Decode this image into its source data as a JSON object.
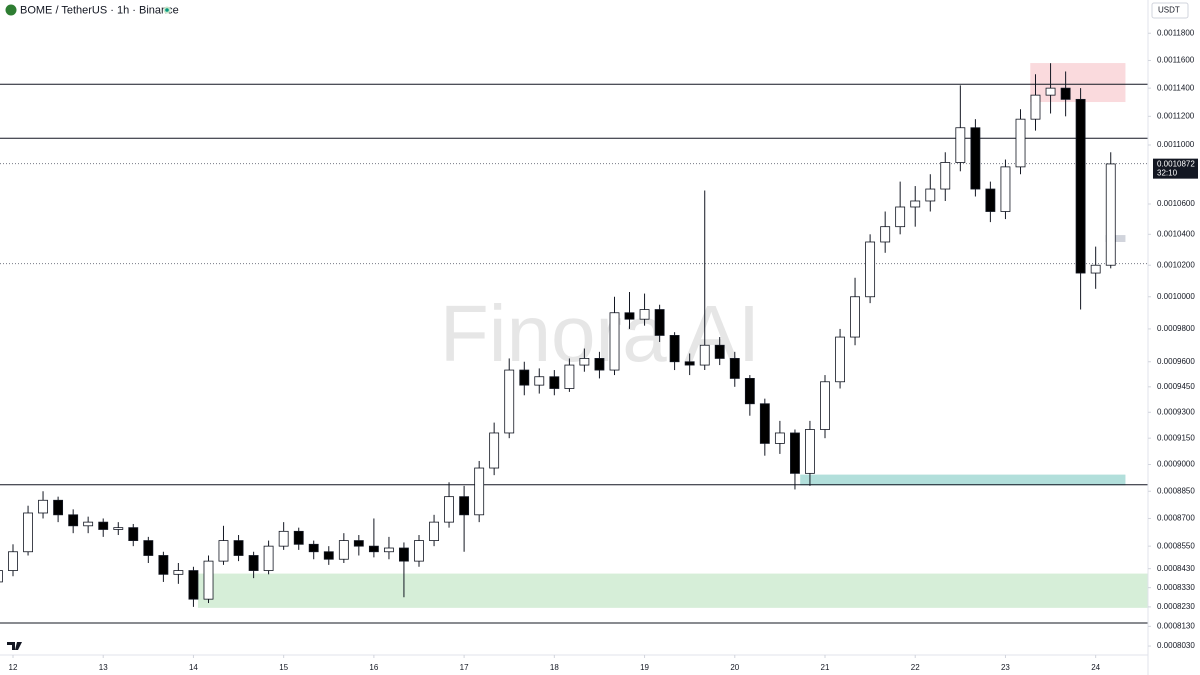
{
  "chart_data": {
    "type": "candlestick",
    "title": "BOME / TetherUS · 1h · Binance",
    "currency": "USDT",
    "watermark": "Finora AI",
    "countdown": "32:10",
    "current_price": 0.0010872,
    "log_scale": true,
    "grid": false,
    "up_color": "#ffffff",
    "down_color": "#000000",
    "xlim": [
      11.856,
      24.58
    ],
    "xticks": [
      12,
      13,
      14,
      15,
      16,
      17,
      18,
      19,
      20,
      21,
      22,
      23,
      24
    ],
    "ylim": [
      0.0007985,
      0.0012049
    ],
    "yticks": [
      {
        "value": 0.00118,
        "label": "0.0011800"
      },
      {
        "value": 0.00116,
        "label": "0.0011600"
      },
      {
        "value": 0.00114,
        "label": "0.0011400"
      },
      {
        "value": 0.00112,
        "label": "0.0011200"
      },
      {
        "value": 0.0011,
        "label": "0.0011000"
      },
      {
        "value": 0.00106,
        "label": "0.0010600"
      },
      {
        "value": 0.00104,
        "label": "0.0010400"
      },
      {
        "value": 0.00102,
        "label": "0.0010200"
      },
      {
        "value": 0.001,
        "label": "0.0010000"
      },
      {
        "value": 0.00098,
        "label": "0.0009800"
      },
      {
        "value": 0.00096,
        "label": "0.0009600"
      },
      {
        "value": 0.000945,
        "label": "0.0009450"
      },
      {
        "value": 0.00093,
        "label": "0.0009300"
      },
      {
        "value": 0.000915,
        "label": "0.0009150"
      },
      {
        "value": 0.0009,
        "label": "0.0009000"
      },
      {
        "value": 0.000885,
        "label": "0.0008850"
      },
      {
        "value": 0.00087,
        "label": "0.0008700"
      },
      {
        "value": 0.000855,
        "label": "0.0008550"
      },
      {
        "value": 0.000843,
        "label": "0.0008430"
      },
      {
        "value": 0.000833,
        "label": "0.0008330"
      },
      {
        "value": 0.000823,
        "label": "0.0008230"
      },
      {
        "value": 0.000813,
        "label": "0.0008130"
      },
      {
        "value": 0.000803,
        "label": "0.0008030"
      }
    ],
    "levels": [
      0.0011428,
      0.0011047,
      0.0008886,
      0.0008147
    ],
    "dotted_levels": [
      0.001021
    ],
    "zones": [
      {
        "from_x": 23.275,
        "to_x": 24.33,
        "low": 0.0011301,
        "high": 0.0011581,
        "color": "#fadadd"
      },
      {
        "from_x": 20.725,
        "to_x": 24.33,
        "low": 0.0008883,
        "high": 0.0008943,
        "color": "#b2dfdb"
      },
      {
        "from_x": 14.05,
        "to_x": 24.58,
        "low": 0.0008225,
        "high": 0.0008404,
        "color": "#d6eed8"
      },
      {
        "from_x": 24.11,
        "to_x": 24.33,
        "low": 0.001035,
        "high": 0.0010395,
        "color": "#d1d4dc"
      }
    ],
    "x": [
      11.833,
      12,
      12.167,
      12.333,
      12.5,
      12.667,
      12.833,
      13,
      13.167,
      13.333,
      13.5,
      13.667,
      13.833,
      14,
      14.167,
      14.333,
      14.5,
      14.667,
      14.833,
      15,
      15.167,
      15.333,
      15.5,
      15.667,
      15.833,
      16,
      16.167,
      16.333,
      16.5,
      16.667,
      16.833,
      17,
      17.167,
      17.333,
      17.5,
      17.667,
      17.833,
      18,
      18.167,
      18.333,
      18.5,
      18.667,
      18.833,
      19,
      19.167,
      19.333,
      19.5,
      19.667,
      19.833,
      20,
      20.167,
      20.333,
      20.5,
      20.667,
      20.833,
      21,
      21.167,
      21.333,
      21.5,
      21.667,
      21.833,
      22,
      22.167,
      22.333,
      22.5,
      22.667,
      22.833,
      23,
      23.167,
      23.333,
      23.5,
      23.667,
      23.833,
      24,
      24.167
    ],
    "open": [
      0.000836,
      0.000842,
      0.000852,
      0.000873,
      0.00088,
      0.000872,
      0.000866,
      0.000868,
      0.000864,
      0.000865,
      0.000858,
      0.00085,
      0.00084,
      0.000842,
      0.000827,
      0.000847,
      0.000858,
      0.00085,
      0.000842,
      0.000855,
      0.000863,
      0.000856,
      0.000852,
      0.000848,
      0.000858,
      0.000855,
      0.000852,
      0.000854,
      0.000847,
      0.000858,
      0.000868,
      0.000882,
      0.000872,
      0.000898,
      0.000918,
      0.000955,
      0.000946,
      0.000951,
      0.000944,
      0.000958,
      0.000962,
      0.000955,
      0.00099,
      0.000986,
      0.000992,
      0.000976,
      0.00096,
      0.000958,
      0.00097,
      0.000962,
      0.00095,
      0.000935,
      0.000912,
      0.000918,
      0.000895,
      0.00092,
      0.000948,
      0.000975,
      0.001,
      0.001035,
      0.001045,
      0.001058,
      0.001062,
      0.00107,
      0.001088,
      0.001112,
      0.00107,
      0.001055,
      0.001085,
      0.001118,
      0.001135,
      0.00114,
      0.001132,
      0.001015,
      0.00102
    ],
    "high": [
      0.000845,
      0.000856,
      0.000877,
      0.000885,
      0.000882,
      0.000875,
      0.000871,
      0.00087,
      0.000868,
      0.000867,
      0.00086,
      0.000852,
      0.000846,
      0.000844,
      0.00085,
      0.000866,
      0.000861,
      0.000852,
      0.000858,
      0.000868,
      0.000865,
      0.000858,
      0.000855,
      0.000862,
      0.000861,
      0.00087,
      0.00086,
      0.000857,
      0.000861,
      0.000872,
      0.00089,
      0.000888,
      0.000902,
      0.000924,
      0.000962,
      0.00096,
      0.000956,
      0.000955,
      0.000962,
      0.000968,
      0.000966,
      0.001,
      0.001003,
      0.001002,
      0.000995,
      0.000978,
      0.000965,
      0.001069,
      0.000975,
      0.000966,
      0.000952,
      0.000938,
      0.000925,
      0.00092,
      0.000925,
      0.000952,
      0.00098,
      0.001012,
      0.00104,
      0.001055,
      0.001075,
      0.001072,
      0.00108,
      0.001095,
      0.001142,
      0.001118,
      0.001075,
      0.00109,
      0.001125,
      0.00115,
      0.001158,
      0.001152,
      0.00114,
      0.001032,
      0.001095
    ],
    "low": [
      0.000833,
      0.000839,
      0.00085,
      0.00087,
      0.000868,
      0.000862,
      0.000862,
      0.00086,
      0.000861,
      0.000855,
      0.000846,
      0.000836,
      0.000835,
      0.000823,
      0.000825,
      0.000845,
      0.000847,
      0.000838,
      0.00084,
      0.000853,
      0.000853,
      0.000848,
      0.000845,
      0.000846,
      0.00085,
      0.000849,
      0.000848,
      0.000828,
      0.000844,
      0.000855,
      0.000865,
      0.000852,
      0.000868,
      0.000894,
      0.000915,
      0.00094,
      0.000941,
      0.00094,
      0.000942,
      0.000954,
      0.00095,
      0.000952,
      0.00098,
      0.000982,
      0.000972,
      0.000955,
      0.000952,
      0.000955,
      0.000958,
      0.000945,
      0.000928,
      0.000905,
      0.000906,
      0.000886,
      0.000888,
      0.000915,
      0.000944,
      0.00097,
      0.000996,
      0.001028,
      0.00104,
      0.001045,
      0.001055,
      0.001062,
      0.001082,
      0.001065,
      0.001048,
      0.00105,
      0.00108,
      0.00111,
      0.001122,
      0.00112,
      0.000992,
      0.001005,
      0.001018
    ],
    "close": [
      0.000842,
      0.000852,
      0.000873,
      0.00088,
      0.000872,
      0.000866,
      0.000868,
      0.000864,
      0.000865,
      0.000858,
      0.00085,
      0.00084,
      0.000842,
      0.000827,
      0.000847,
      0.000858,
      0.00085,
      0.000842,
      0.000855,
      0.000863,
      0.000856,
      0.000852,
      0.000848,
      0.000858,
      0.000855,
      0.000852,
      0.000854,
      0.000847,
      0.000858,
      0.000868,
      0.000882,
      0.000872,
      0.000898,
      0.000918,
      0.000955,
      0.000946,
      0.000951,
      0.000944,
      0.000958,
      0.000962,
      0.000955,
      0.00099,
      0.000986,
      0.000992,
      0.000976,
      0.00096,
      0.000958,
      0.00097,
      0.000962,
      0.00095,
      0.000935,
      0.000912,
      0.000918,
      0.000895,
      0.00092,
      0.000948,
      0.000975,
      0.001,
      0.001035,
      0.001045,
      0.001058,
      0.001062,
      0.00107,
      0.001088,
      0.001112,
      0.00107,
      0.001055,
      0.001085,
      0.001118,
      0.001135,
      0.00114,
      0.001132,
      0.001015,
      0.00102,
      0.001087
    ]
  }
}
